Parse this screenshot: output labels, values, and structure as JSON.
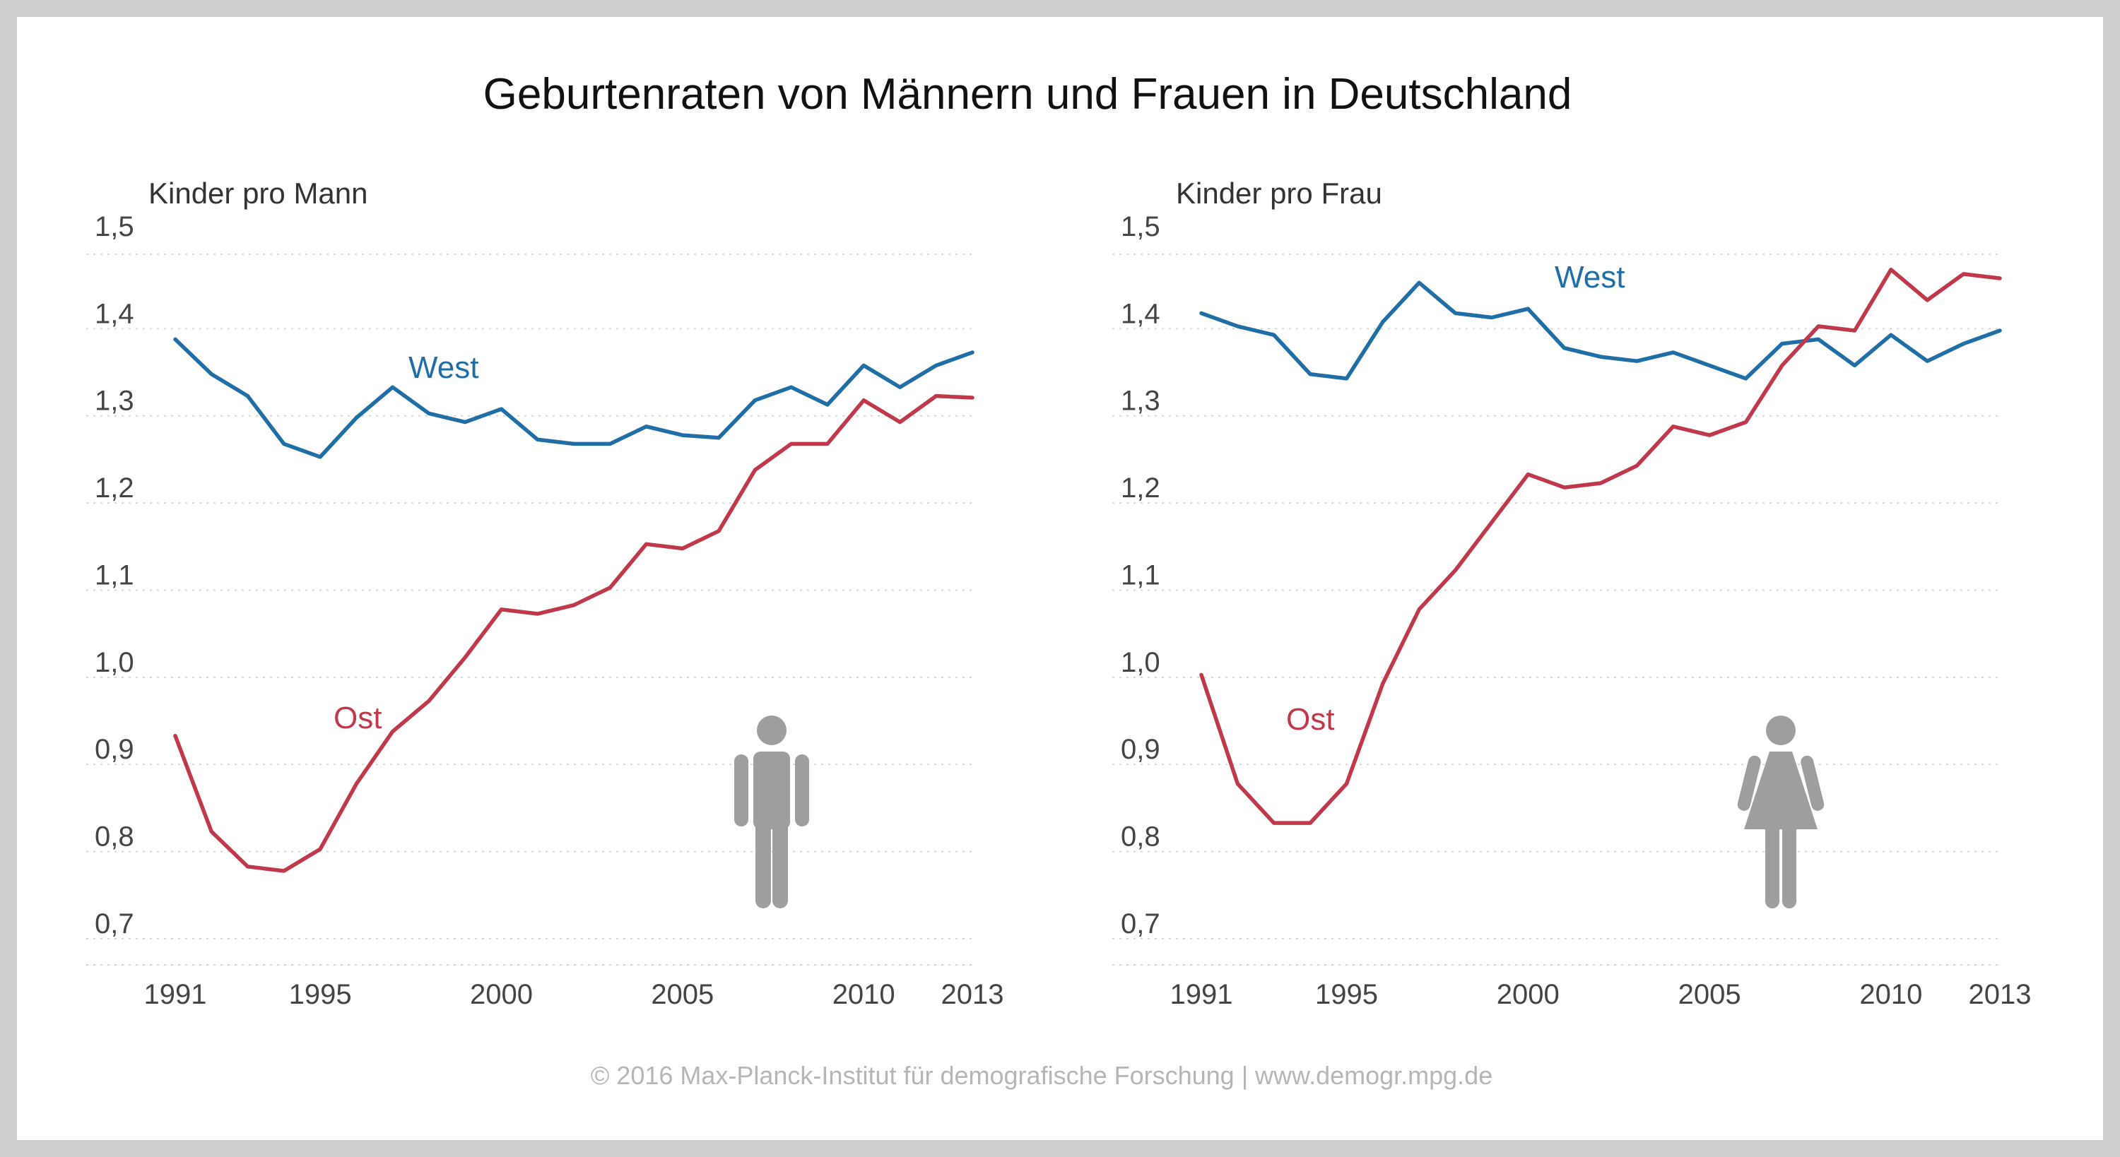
{
  "title": "Geburtenraten von Männern und Frauen in Deutschland",
  "credit": "© 2016 Max-Planck-Institut für demografische Forschung | www.demogr.mpg.de",
  "colors": {
    "west": "#1f6fa6",
    "ost": "#c0394b",
    "icon": "#9e9e9e"
  },
  "icons": {
    "men": "man-figure-icon",
    "women": "woman-figure-icon"
  },
  "chart_data": [
    {
      "type": "line",
      "ylabel": "Kinder pro Mann",
      "ylim": [
        0.67,
        1.5
      ],
      "yticks": [
        0.7,
        0.8,
        0.9,
        1.0,
        1.1,
        1.2,
        1.3,
        1.4,
        1.5
      ],
      "ytick_labels": [
        "0,7",
        "0,8",
        "0,9",
        "1,0",
        "1,1",
        "1,2",
        "1,3",
        "1,4",
        "1,5"
      ],
      "xlim": [
        1991,
        2013
      ],
      "xticks": [
        1991,
        1995,
        2000,
        2005,
        2010,
        2013
      ],
      "xtick_labels": [
        "1991",
        "1995",
        "2000",
        "2005",
        "2010",
        "2013"
      ],
      "grid": true,
      "x": [
        1991,
        1992,
        1993,
        1994,
        1995,
        1996,
        1997,
        1998,
        1999,
        2000,
        2001,
        2002,
        2003,
        2004,
        2005,
        2006,
        2007,
        2008,
        2009,
        2010,
        2011,
        2012,
        2013
      ],
      "series": [
        {
          "name": "West",
          "values": [
            1.37,
            1.33,
            1.305,
            1.25,
            1.235,
            1.28,
            1.315,
            1.285,
            1.275,
            1.29,
            1.255,
            1.25,
            1.25,
            1.27,
            1.26,
            1.257,
            1.3,
            1.315,
            1.295,
            1.34,
            1.315,
            1.34,
            1.355
          ]
        },
        {
          "name": "Ost",
          "values": [
            0.915,
            0.805,
            0.765,
            0.76,
            0.785,
            0.86,
            0.92,
            0.955,
            1.005,
            1.06,
            1.055,
            1.065,
            1.085,
            1.135,
            1.13,
            1.15,
            1.22,
            1.25,
            1.25,
            1.3,
            1.275,
            1.305,
            1.303
          ]
        }
      ]
    },
    {
      "type": "line",
      "ylabel": "Kinder pro Frau",
      "ylim": [
        0.67,
        1.5
      ],
      "yticks": [
        0.7,
        0.8,
        0.9,
        1.0,
        1.1,
        1.2,
        1.3,
        1.4,
        1.5
      ],
      "ytick_labels": [
        "0,7",
        "0,8",
        "0,9",
        "1,0",
        "1,1",
        "1,2",
        "1,3",
        "1,4",
        "1,5"
      ],
      "xlim": [
        1991,
        2013
      ],
      "xticks": [
        1991,
        1995,
        2000,
        2005,
        2010,
        2013
      ],
      "xtick_labels": [
        "1991",
        "1995",
        "2000",
        "2005",
        "2010",
        "2013"
      ],
      "grid": true,
      "x": [
        1991,
        1992,
        1993,
        1994,
        1995,
        1996,
        1997,
        1998,
        1999,
        2000,
        2001,
        2002,
        2003,
        2004,
        2005,
        2006,
        2007,
        2008,
        2009,
        2010,
        2011,
        2012,
        2013
      ],
      "series": [
        {
          "name": "West",
          "values": [
            1.4,
            1.385,
            1.375,
            1.33,
            1.325,
            1.39,
            1.435,
            1.4,
            1.395,
            1.405,
            1.36,
            1.35,
            1.345,
            1.355,
            1.34,
            1.325,
            1.365,
            1.37,
            1.34,
            1.375,
            1.345,
            1.365,
            1.38
          ]
        },
        {
          "name": "Ost",
          "values": [
            0.985,
            0.86,
            0.815,
            0.815,
            0.86,
            0.975,
            1.06,
            1.105,
            1.16,
            1.215,
            1.2,
            1.205,
            1.225,
            1.27,
            1.26,
            1.275,
            1.34,
            1.385,
            1.38,
            1.45,
            1.415,
            1.445,
            1.44
          ]
        }
      ]
    }
  ]
}
